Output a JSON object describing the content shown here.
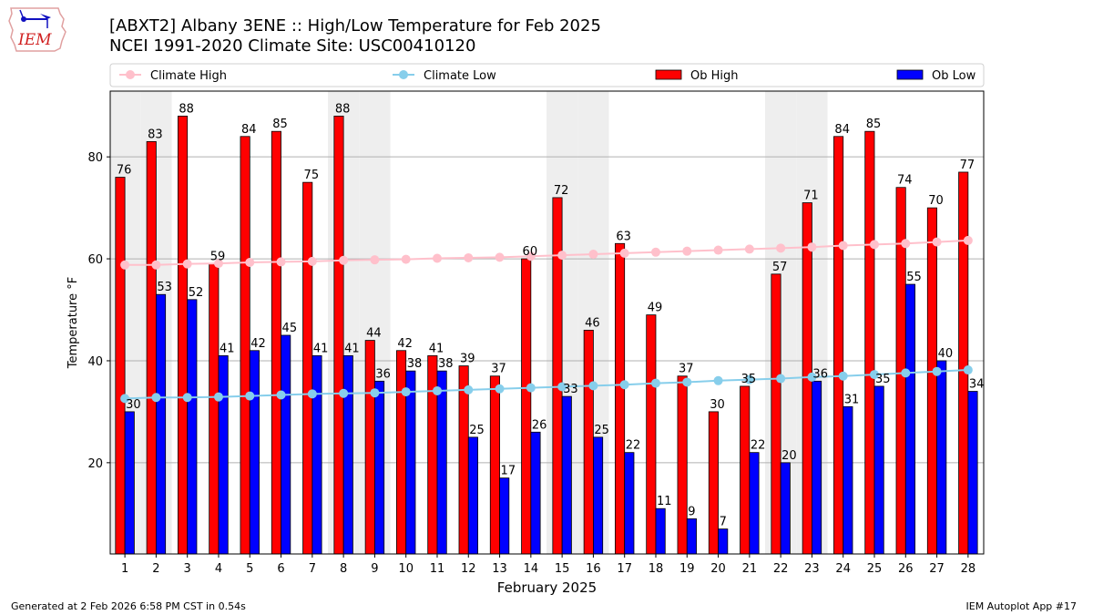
{
  "header": {
    "title_line1": "[ABXT2] Albany 3ENE :: High/Low Temperature for Feb 2025",
    "title_line2": "NCEI 1991-2020 Climate Site: USC00410120",
    "logo_text": "IEM"
  },
  "footer": {
    "generated": "Generated at 2 Feb 2026 6:58 PM CST in 0.54s",
    "app": "IEM Autoplot App #17"
  },
  "chart_data": {
    "type": "bar",
    "title": "[ABXT2] Albany 3ENE :: High/Low Temperature for Feb 2025",
    "subtitle": "NCEI 1991-2020 Climate Site: USC00410120",
    "xlabel": "February 2025",
    "ylabel": "Temperature °F",
    "xlim": [
      0.53,
      28.5
    ],
    "ylim": [
      2.1,
      92.9
    ],
    "yticks": [
      20,
      40,
      60,
      80
    ],
    "grid": "y",
    "legend_position": "top",
    "weekend_shaded_days": [
      1,
      2,
      8,
      9,
      15,
      16,
      22,
      23
    ],
    "categories": [
      "1",
      "2",
      "3",
      "4",
      "5",
      "6",
      "7",
      "8",
      "9",
      "10",
      "11",
      "12",
      "13",
      "14",
      "15",
      "16",
      "17",
      "18",
      "19",
      "20",
      "21",
      "22",
      "23",
      "24",
      "25",
      "26",
      "27",
      "28"
    ],
    "series": [
      {
        "name": "Climate High",
        "kind": "line",
        "color": "#ffc0cb",
        "values": [
          58.8,
          58.8,
          59.0,
          59.1,
          59.3,
          59.4,
          59.5,
          59.7,
          59.8,
          59.9,
          60.1,
          60.2,
          60.3,
          60.5,
          60.7,
          60.9,
          61.1,
          61.3,
          61.5,
          61.7,
          61.9,
          62.1,
          62.3,
          62.6,
          62.8,
          63.0,
          63.3,
          63.6
        ]
      },
      {
        "name": "Climate Low",
        "kind": "line",
        "color": "#87ceeb",
        "values": [
          32.6,
          32.8,
          32.8,
          32.9,
          33.1,
          33.3,
          33.5,
          33.6,
          33.7,
          33.9,
          34.1,
          34.3,
          34.5,
          34.7,
          34.9,
          35.1,
          35.3,
          35.6,
          35.8,
          36.1,
          36.3,
          36.5,
          36.8,
          37.0,
          37.3,
          37.6,
          37.9,
          38.2
        ]
      },
      {
        "name": "Ob High",
        "kind": "bar",
        "color": "#ff0000",
        "values": [
          76,
          83,
          88,
          59,
          84,
          85,
          75,
          88,
          44,
          42,
          41,
          39,
          37,
          60,
          72,
          46,
          63,
          49,
          37,
          30,
          35,
          57,
          71,
          84,
          85,
          74,
          70,
          77
        ]
      },
      {
        "name": "Ob Low",
        "kind": "bar",
        "color": "#0000ff",
        "values": [
          30,
          53,
          52,
          41,
          42,
          45,
          41,
          41,
          36,
          38,
          38,
          25,
          17,
          26,
          33,
          25,
          22,
          11,
          9,
          7,
          22,
          20,
          36,
          31,
          35,
          55,
          40,
          34
        ]
      }
    ]
  }
}
